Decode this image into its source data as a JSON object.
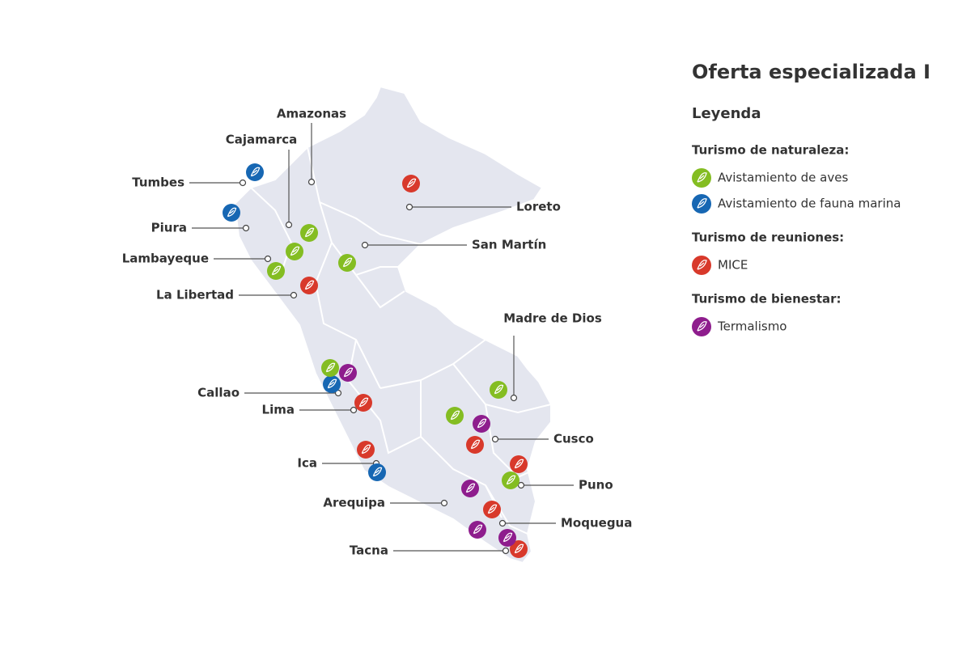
{
  "title": "Oferta especializada I",
  "legend": {
    "title": "Leyenda",
    "groups": [
      {
        "title": "Turismo de naturaleza:",
        "items": [
          {
            "label": "Avistamiento de aves",
            "color": "#84bd22"
          },
          {
            "label": "Avistamiento de fauna marina",
            "color": "#1767b3"
          }
        ]
      },
      {
        "title": "Turismo de reuniones:",
        "items": [
          {
            "label": "MICE",
            "color": "#d8392b"
          }
        ]
      },
      {
        "title": "Turismo de bienestar:",
        "items": [
          {
            "label": "Termalismo",
            "color": "#8e1d8d"
          }
        ]
      }
    ]
  },
  "regions": [
    {
      "label": "Amazonas"
    },
    {
      "label": "Cajamarca"
    },
    {
      "label": "Tumbes"
    },
    {
      "label": "Piura"
    },
    {
      "label": "Lambayeque"
    },
    {
      "label": "La Libertad"
    },
    {
      "label": "Loreto"
    },
    {
      "label": "San Martín"
    },
    {
      "label": "Madre de Dios"
    },
    {
      "label": "Callao"
    },
    {
      "label": "Lima"
    },
    {
      "label": "Ica"
    },
    {
      "label": "Arequipa"
    },
    {
      "label": "Tacna"
    },
    {
      "label": "Cusco"
    },
    {
      "label": "Puno"
    },
    {
      "label": "Moquegua"
    }
  ]
}
